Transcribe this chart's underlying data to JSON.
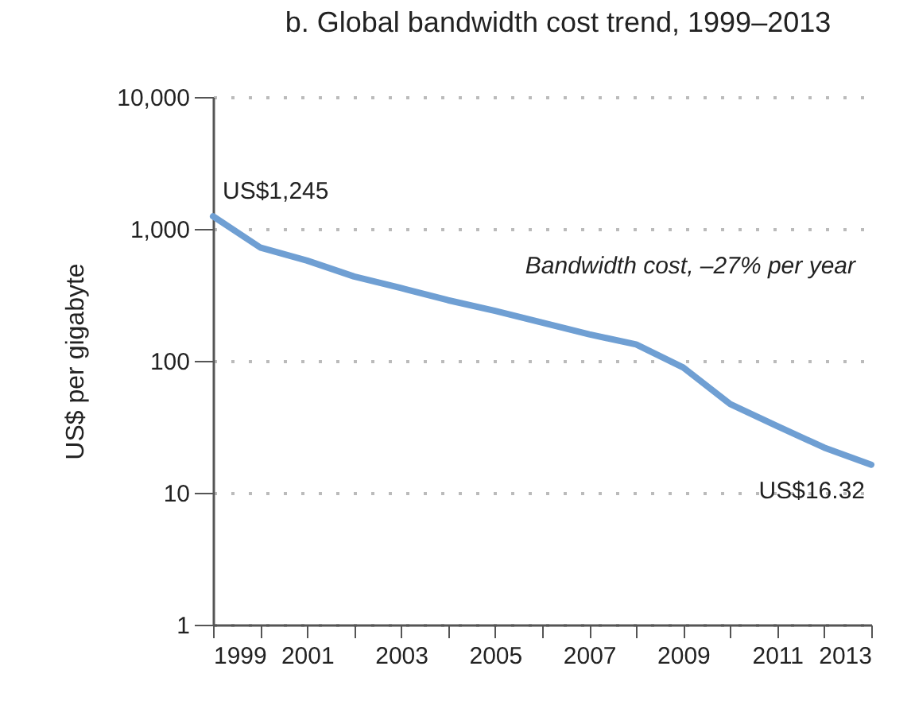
{
  "chart_data": {
    "type": "line",
    "title": "b. Global bandwidth cost trend, 1999–2013",
    "ylabel": "US$ per gigabyte",
    "x": [
      1999,
      2000,
      2001,
      2002,
      2003,
      2004,
      2005,
      2006,
      2007,
      2008,
      2009,
      2010,
      2011,
      2012,
      2013
    ],
    "series": [
      {
        "name": "Bandwidth cost, –27% per year",
        "color": "#6f9fd3",
        "values": [
          1245,
          724,
          575,
          436,
          356,
          288,
          239,
          195,
          159,
          133,
          89,
          47,
          32,
          22,
          16.32
        ]
      }
    ],
    "xlim": [
      1999,
      2013
    ],
    "xticks": [
      1999,
      {
        "value": 2000,
        "label": null
      },
      2001,
      {
        "value": 2002,
        "label": null
      },
      2003,
      {
        "value": 2004,
        "label": null
      },
      2005,
      {
        "value": 2006,
        "label": null
      },
      2007,
      {
        "value": 2008,
        "label": null
      },
      2009,
      {
        "value": 2010,
        "label": null
      },
      2011,
      {
        "value": 2012,
        "label": null
      },
      2013
    ],
    "ylim": [
      1,
      10000
    ],
    "yticks": [
      1,
      10,
      100,
      {
        "value": 1000,
        "label": "1,000"
      },
      {
        "value": 10000,
        "label": "10,000"
      }
    ],
    "log": "y",
    "grid": "y",
    "marker": "none",
    "line_style": "solid",
    "annotations": [
      {
        "text": "US$1,245",
        "x": 1999,
        "y": 1245
      },
      {
        "text": "US$16.32",
        "x": 2013,
        "y": 16.32
      }
    ]
  }
}
